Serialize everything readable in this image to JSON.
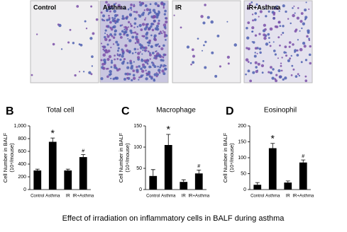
{
  "image_panels": [
    "Control",
    "Asthma",
    "IR",
    "IR+Asthma"
  ],
  "chart_data": [
    {
      "type": "bar",
      "panel_label": "B",
      "title": "Total cell",
      "ylabel": [
        "Cell Number in BALF",
        "(10⁴/mouse)"
      ],
      "categories": [
        "Control",
        "Asthma",
        "IR",
        "IR+Asthma"
      ],
      "values": [
        300,
        750,
        300,
        510
      ],
      "errors": [
        20,
        60,
        20,
        40
      ],
      "markers": [
        null,
        "*",
        null,
        "#"
      ],
      "color": "#000000",
      "ylim": [
        0,
        1000
      ],
      "yticks": [
        0,
        200,
        400,
        600,
        800,
        {
          "value": 1000,
          "label": "1,000"
        }
      ]
    },
    {
      "type": "bar",
      "panel_label": "C",
      "title": "Macrophage",
      "ylabel": [
        "Cell Number in BALF",
        "(10⁴/mouse)"
      ],
      "categories": [
        "Control",
        "Asthma",
        "IR",
        "IR+Asthma"
      ],
      "values": [
        32,
        105,
        18,
        38
      ],
      "errors": [
        15,
        25,
        5,
        8
      ],
      "markers": [
        null,
        "*",
        null,
        "#"
      ],
      "color": "#000000",
      "ylim": [
        0,
        150
      ],
      "yticks": [
        0,
        50,
        100,
        150
      ]
    },
    {
      "type": "bar",
      "panel_label": "D",
      "title": "Eosinophil",
      "ylabel": [
        "Cell Number in BALF",
        "(10⁴/mouse)"
      ],
      "categories": [
        "Control",
        "Asthma",
        "IR",
        "IR+Asthma"
      ],
      "values": [
        15,
        130,
        22,
        85
      ],
      "errors": [
        7,
        15,
        5,
        8
      ],
      "markers": [
        null,
        "*",
        null,
        "#"
      ],
      "color": "#000000",
      "ylim": [
        0,
        200
      ],
      "yticks": [
        0,
        50,
        100,
        150,
        200
      ]
    }
  ],
  "caption": "Effect of irradiation on inflammatory cells in BALF during asthma"
}
